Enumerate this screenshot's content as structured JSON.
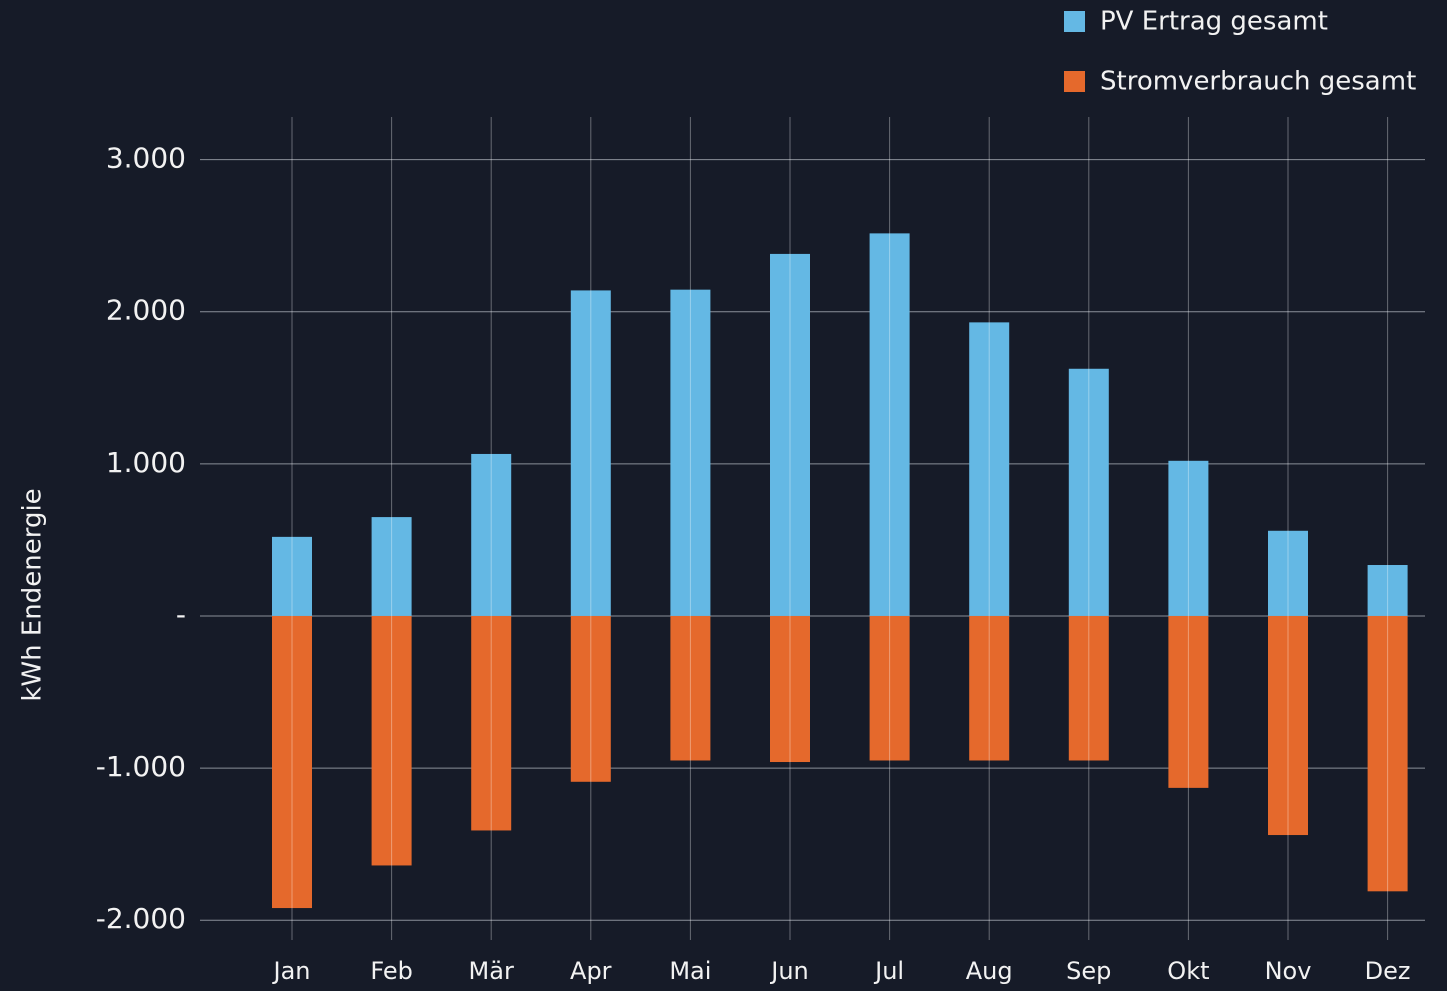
{
  "chart_data": {
    "type": "bar",
    "ylabel": "kWh Endenergie",
    "categories": [
      "Jan",
      "Feb",
      "Mär",
      "Apr",
      "Mai",
      "Jun",
      "Jul",
      "Aug",
      "Sep",
      "Okt",
      "Nov",
      "Dez"
    ],
    "series": [
      {
        "name": "PV Ertrag gesamt",
        "color": "#64b8e4",
        "values": [
          520,
          650,
          1065,
          2140,
          2145,
          2380,
          2515,
          1930,
          1625,
          1020,
          560,
          335
        ]
      },
      {
        "name": "Stromverbrauch gesamt",
        "color": "#e5692c",
        "values": [
          -1920,
          -1640,
          -1410,
          -1090,
          -950,
          -960,
          -950,
          -950,
          -950,
          -1130,
          -1440,
          -1810
        ]
      }
    ],
    "ylim": [
      -2130,
      3280
    ],
    "yticks": [
      {
        "value": -2000,
        "label": "-2.000"
      },
      {
        "value": -1000,
        "label": "-1.000"
      },
      {
        "value": 0,
        "label": "-"
      },
      {
        "value": 1000,
        "label": "1.000"
      },
      {
        "value": 2000,
        "label": "2.000"
      },
      {
        "value": 3000,
        "label": "3.000"
      }
    ],
    "grid": true,
    "legend": "top-right"
  }
}
